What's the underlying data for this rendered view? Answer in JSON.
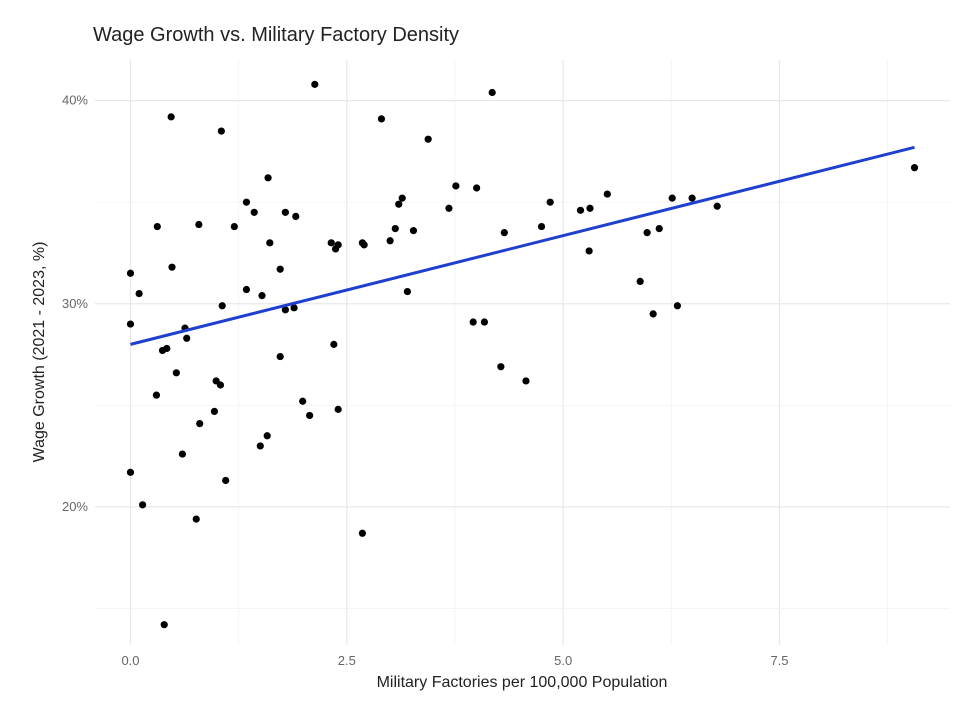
{
  "chart_data": {
    "type": "scatter",
    "title": "Wage Growth vs. Military Factory Density",
    "xlabel": "Military Factories per 100,000 Population",
    "ylabel": "Wage Growth (2021 - 2023, %)",
    "xlim": [
      -0.41,
      9.47
    ],
    "ylim": [
      13.2,
      42.0
    ],
    "x_ticks": [
      0,
      2.5,
      5,
      7.5
    ],
    "x_tick_labels": [
      "0.0",
      "2.5",
      "5.0",
      "7.5"
    ],
    "y_ticks": [
      20,
      30,
      40
    ],
    "y_tick_labels": [
      "20%",
      "30%",
      "40%"
    ],
    "grid": true,
    "point_color": "#000000",
    "trend_color": "#1f3fcf",
    "trend_line": {
      "x": [
        0,
        9.06
      ],
      "y": [
        28.0,
        37.7
      ]
    },
    "points": [
      [
        0.0,
        31.5
      ],
      [
        0.0,
        29.0
      ],
      [
        0.0,
        21.7
      ],
      [
        0.1,
        30.5
      ],
      [
        0.14,
        20.1
      ],
      [
        0.31,
        33.8
      ],
      [
        0.3,
        25.5
      ],
      [
        0.37,
        27.7
      ],
      [
        0.42,
        27.8
      ],
      [
        0.39,
        14.2
      ],
      [
        0.47,
        39.2
      ],
      [
        0.48,
        31.8
      ],
      [
        0.53,
        26.6
      ],
      [
        0.6,
        22.6
      ],
      [
        0.63,
        28.8
      ],
      [
        0.65,
        28.3
      ],
      [
        0.76,
        19.4
      ],
      [
        0.79,
        33.9
      ],
      [
        0.8,
        24.1
      ],
      [
        0.97,
        24.7
      ],
      [
        0.99,
        26.2
      ],
      [
        1.04,
        26.0
      ],
      [
        1.05,
        38.5
      ],
      [
        1.06,
        29.9
      ],
      [
        1.1,
        21.3
      ],
      [
        1.2,
        33.8
      ],
      [
        1.34,
        35.0
      ],
      [
        1.34,
        30.7
      ],
      [
        1.43,
        34.5
      ],
      [
        1.5,
        23.0
      ],
      [
        1.52,
        30.4
      ],
      [
        1.58,
        23.5
      ],
      [
        1.59,
        36.2
      ],
      [
        1.61,
        33.0
      ],
      [
        1.73,
        31.7
      ],
      [
        1.73,
        27.4
      ],
      [
        1.79,
        34.5
      ],
      [
        1.79,
        29.7
      ],
      [
        1.89,
        29.8
      ],
      [
        1.91,
        34.3
      ],
      [
        1.99,
        25.2
      ],
      [
        2.07,
        24.5
      ],
      [
        2.13,
        40.8
      ],
      [
        2.32,
        33.0
      ],
      [
        2.35,
        28.0
      ],
      [
        2.37,
        32.7
      ],
      [
        2.4,
        32.9
      ],
      [
        2.4,
        24.8
      ],
      [
        2.68,
        33.0
      ],
      [
        2.7,
        32.9
      ],
      [
        2.68,
        18.7
      ],
      [
        2.9,
        39.1
      ],
      [
        3.0,
        33.1
      ],
      [
        3.06,
        33.7
      ],
      [
        3.1,
        34.9
      ],
      [
        3.14,
        35.2
      ],
      [
        3.2,
        30.6
      ],
      [
        3.27,
        33.6
      ],
      [
        3.44,
        38.1
      ],
      [
        3.68,
        34.7
      ],
      [
        3.76,
        35.8
      ],
      [
        3.96,
        29.1
      ],
      [
        4.0,
        35.7
      ],
      [
        4.09,
        29.1
      ],
      [
        4.18,
        40.4
      ],
      [
        4.28,
        26.9
      ],
      [
        4.32,
        33.5
      ],
      [
        4.57,
        26.2
      ],
      [
        4.75,
        33.8
      ],
      [
        4.85,
        35.0
      ],
      [
        5.2,
        34.6
      ],
      [
        5.31,
        34.7
      ],
      [
        5.3,
        32.6
      ],
      [
        5.51,
        35.4
      ],
      [
        5.89,
        31.1
      ],
      [
        5.97,
        33.5
      ],
      [
        6.04,
        29.5
      ],
      [
        6.11,
        33.7
      ],
      [
        6.26,
        35.2
      ],
      [
        6.32,
        29.9
      ],
      [
        6.49,
        35.2
      ],
      [
        6.78,
        34.8
      ],
      [
        9.06,
        36.7
      ]
    ]
  }
}
